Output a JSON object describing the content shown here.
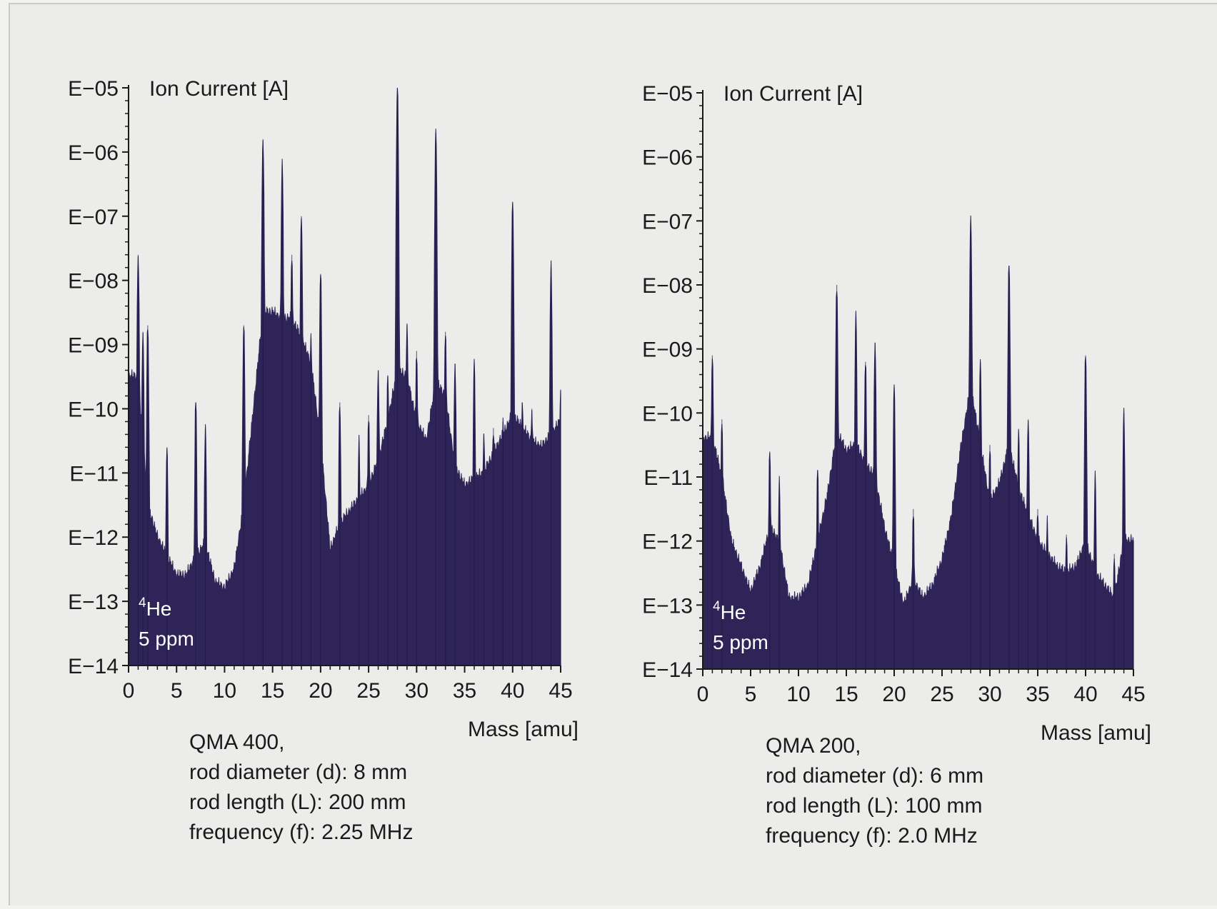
{
  "chart_data": [
    {
      "type": "area",
      "name": "QMA 400",
      "ylabel": "Ion Current [A]",
      "xlabel": "Mass [amu]",
      "y_scale": "log",
      "ylim_exp": [
        -14,
        -5
      ],
      "y_ticks": [
        "E−05",
        "E−06",
        "E−07",
        "E−08",
        "E−09",
        "E−10",
        "E−11",
        "E−12",
        "E−13",
        "E−14"
      ],
      "xlim": [
        0,
        45
      ],
      "x_ticks": [
        "0",
        "5",
        "10",
        "15",
        "20",
        "25",
        "30",
        "35",
        "40",
        "45"
      ],
      "inset": {
        "isotope_mass": "4",
        "element": "He",
        "concentration": "5 ppm"
      },
      "caption": [
        "QMA 400,",
        "rod diameter (d): 8 mm",
        "rod length (L): 200 mm",
        "frequency (f): 2.25 MHz"
      ],
      "fill_color": "#2e2458",
      "baseline_exp": [
        [
          0,
          -9.5
        ],
        [
          1,
          -9.5
        ],
        [
          2,
          -11.5
        ],
        [
          3,
          -12.0
        ],
        [
          4,
          -12.3
        ],
        [
          5,
          -12.6
        ],
        [
          6,
          -12.6
        ],
        [
          7,
          -12.3
        ],
        [
          8,
          -12.1
        ],
        [
          9,
          -12.7
        ],
        [
          10,
          -12.8
        ],
        [
          11,
          -12.5
        ],
        [
          12,
          -11.5
        ],
        [
          13,
          -10.0
        ],
        [
          14,
          -8.5
        ],
        [
          15,
          -8.5
        ],
        [
          16,
          -8.6
        ],
        [
          17,
          -8.6
        ],
        [
          18,
          -8.9
        ],
        [
          19,
          -9.3
        ],
        [
          20,
          -10.5
        ],
        [
          21,
          -12.2
        ],
        [
          22,
          -11.8
        ],
        [
          23,
          -11.6
        ],
        [
          24,
          -11.4
        ],
        [
          25,
          -11.2
        ],
        [
          26,
          -10.8
        ],
        [
          27,
          -10.2
        ],
        [
          28,
          -9.4
        ],
        [
          29,
          -9.5
        ],
        [
          30,
          -10.2
        ],
        [
          31,
          -10.5
        ],
        [
          32,
          -9.6
        ],
        [
          33,
          -9.8
        ],
        [
          34,
          -10.9
        ],
        [
          35,
          -11.2
        ],
        [
          36,
          -11.1
        ],
        [
          37,
          -11.0
        ],
        [
          38,
          -10.7
        ],
        [
          39,
          -10.4
        ],
        [
          40,
          -10.1
        ],
        [
          41,
          -10.3
        ],
        [
          42,
          -10.5
        ],
        [
          43,
          -10.6
        ],
        [
          44,
          -10.4
        ],
        [
          45,
          -10.2
        ]
      ],
      "peaks_exp": [
        [
          1,
          -7.6
        ],
        [
          1.5,
          -8.8
        ],
        [
          2,
          -8.7
        ],
        [
          4,
          -10.6
        ],
        [
          7,
          -9.9
        ],
        [
          8,
          -10.3
        ],
        [
          12,
          -8.7
        ],
        [
          14,
          -5.8
        ],
        [
          16,
          -6.2
        ],
        [
          17,
          -7.6
        ],
        [
          18,
          -7.0
        ],
        [
          19,
          -8.9
        ],
        [
          20,
          -7.9
        ],
        [
          22,
          -9.9
        ],
        [
          24,
          -10.5
        ],
        [
          25,
          -10.1
        ],
        [
          26,
          -9.4
        ],
        [
          27,
          -9.5
        ],
        [
          28,
          -5.0
        ],
        [
          29,
          -8.7
        ],
        [
          30,
          -9.1
        ],
        [
          32,
          -5.7
        ],
        [
          33,
          -8.8
        ],
        [
          34,
          -9.3
        ],
        [
          36,
          -9.3
        ],
        [
          37,
          -10.4
        ],
        [
          38,
          -10.3
        ],
        [
          39,
          -10.2
        ],
        [
          40,
          -6.8
        ],
        [
          41,
          -9.9
        ],
        [
          42,
          -10.0
        ],
        [
          44,
          -7.8
        ],
        [
          45,
          -9.7
        ]
      ]
    },
    {
      "type": "area",
      "name": "QMA 200",
      "ylabel": "Ion Current [A]",
      "xlabel": "Mass [amu]",
      "y_scale": "log",
      "ylim_exp": [
        -14,
        -5
      ],
      "y_ticks": [
        "E−05",
        "E−06",
        "E−07",
        "E−08",
        "E−09",
        "E−10",
        "E−11",
        "E−12",
        "E−13",
        "E−14"
      ],
      "xlim": [
        0,
        45
      ],
      "x_ticks": [
        "0",
        "5",
        "10",
        "15",
        "20",
        "25",
        "30",
        "35",
        "40",
        "45"
      ],
      "inset": {
        "isotope_mass": "4",
        "element": "He",
        "concentration": "5 ppm"
      },
      "caption": [
        "QMA 200,",
        "rod diameter (d): 6 mm",
        "rod length (L): 100 mm",
        "frequency (f): 2.0 MHz"
      ],
      "fill_color": "#2e2458",
      "baseline_exp": [
        [
          0,
          -10.4
        ],
        [
          1,
          -10.4
        ],
        [
          2,
          -11.0
        ],
        [
          3,
          -12.0
        ],
        [
          4,
          -12.4
        ],
        [
          5,
          -12.8
        ],
        [
          6,
          -12.4
        ],
        [
          7,
          -11.8
        ],
        [
          8,
          -12.0
        ],
        [
          9,
          -12.9
        ],
        [
          10,
          -12.9
        ],
        [
          11,
          -12.7
        ],
        [
          12,
          -12.0
        ],
        [
          13,
          -11.3
        ],
        [
          14,
          -10.3
        ],
        [
          15,
          -10.6
        ],
        [
          16,
          -10.5
        ],
        [
          17,
          -10.8
        ],
        [
          18,
          -11.0
        ],
        [
          19,
          -11.8
        ],
        [
          20,
          -12.4
        ],
        [
          21,
          -13.0
        ],
        [
          22,
          -12.6
        ],
        [
          23,
          -12.9
        ],
        [
          24,
          -12.7
        ],
        [
          25,
          -12.3
        ],
        [
          26,
          -11.6
        ],
        [
          27,
          -10.5
        ],
        [
          28,
          -9.6
        ],
        [
          29,
          -10.5
        ],
        [
          30,
          -11.4
        ],
        [
          31,
          -11.1
        ],
        [
          32,
          -10.5
        ],
        [
          33,
          -11.2
        ],
        [
          34,
          -11.6
        ],
        [
          35,
          -12.0
        ],
        [
          36,
          -12.2
        ],
        [
          37,
          -12.4
        ],
        [
          38,
          -12.5
        ],
        [
          39,
          -12.4
        ],
        [
          40,
          -12.0
        ],
        [
          41,
          -12.5
        ],
        [
          42,
          -12.7
        ],
        [
          43,
          -12.9
        ],
        [
          44,
          -12.0
        ],
        [
          45,
          -12.0
        ]
      ],
      "peaks_exp": [
        [
          1,
          -9.1
        ],
        [
          2,
          -10.1
        ],
        [
          7,
          -10.6
        ],
        [
          8,
          -11.1
        ],
        [
          12,
          -10.9
        ],
        [
          14,
          -8.0
        ],
        [
          16,
          -8.5
        ],
        [
          17,
          -9.2
        ],
        [
          18,
          -8.9
        ],
        [
          20,
          -9.6
        ],
        [
          22,
          -11.5
        ],
        [
          28,
          -7.0
        ],
        [
          29,
          -9.2
        ],
        [
          30,
          -10.5
        ],
        [
          32,
          -7.7
        ],
        [
          33,
          -10.3
        ],
        [
          34,
          -10.1
        ],
        [
          35,
          -11.5
        ],
        [
          36,
          -11.7
        ],
        [
          38,
          -11.9
        ],
        [
          40,
          -9.1
        ],
        [
          41,
          -11.0
        ],
        [
          43,
          -12.2
        ],
        [
          44,
          -10.0
        ],
        [
          45,
          -12.0
        ]
      ]
    }
  ]
}
